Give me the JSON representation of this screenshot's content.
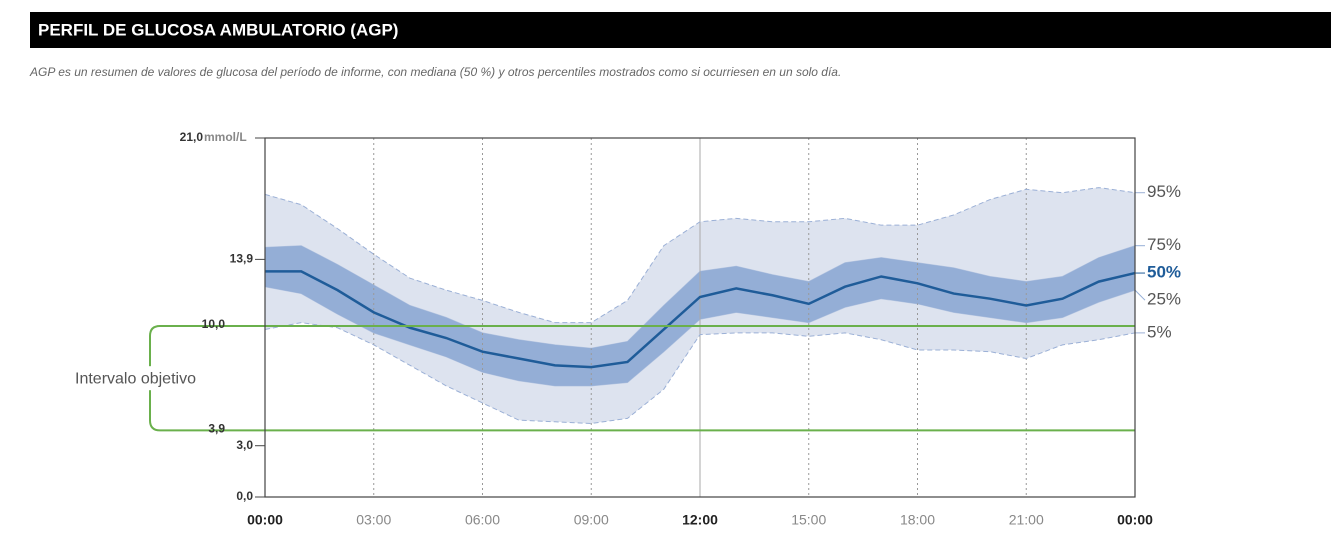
{
  "chart_data": {
    "type": "agp",
    "title": "PERFIL DE GLUCOSA AMBULATORIO (AGP)",
    "subtitle": "AGP es un resumen de valores de glucosa del período de informe, con mediana (50 %) y otros percentiles mostrados como si ocurriesen en un solo día.",
    "y_unit": "mmol/L",
    "x": [
      0,
      1,
      2,
      3,
      4,
      5,
      6,
      7,
      8,
      9,
      10,
      11,
      12,
      13,
      14,
      15,
      16,
      17,
      18,
      19,
      20,
      21,
      22,
      23,
      24
    ],
    "series": [
      {
        "name": "5%",
        "color": "#9bb0d6",
        "values": [
          9.8,
          10.2,
          9.9,
          8.9,
          7.7,
          6.5,
          5.5,
          4.5,
          4.4,
          4.3,
          4.6,
          6.3,
          9.5,
          9.6,
          9.6,
          9.4,
          9.6,
          9.2,
          8.6,
          8.6,
          8.5,
          8.1,
          8.9,
          9.2,
          9.6
        ]
      },
      {
        "name": "25%",
        "color": "#94aed6",
        "values": [
          12.3,
          11.9,
          10.7,
          9.6,
          8.9,
          8.2,
          7.3,
          6.8,
          6.5,
          6.5,
          6.7,
          8.5,
          10.4,
          10.8,
          10.5,
          10.2,
          11.1,
          11.6,
          11.3,
          10.8,
          10.5,
          10.2,
          10.5,
          11.4,
          12.1
        ]
      },
      {
        "name": "50%",
        "color": "#1f5c99",
        "values": [
          13.2,
          13.2,
          12.1,
          10.8,
          9.9,
          9.3,
          8.5,
          8.1,
          7.7,
          7.6,
          7.9,
          9.8,
          11.7,
          12.2,
          11.8,
          11.3,
          12.3,
          12.9,
          12.5,
          11.9,
          11.6,
          11.2,
          11.6,
          12.6,
          13.1
        ]
      },
      {
        "name": "75%",
        "color": "#94aed6",
        "values": [
          14.6,
          14.7,
          13.6,
          12.4,
          11.2,
          10.5,
          9.6,
          9.2,
          8.9,
          8.7,
          9.1,
          11.2,
          13.2,
          13.5,
          13.0,
          12.6,
          13.7,
          14.0,
          13.7,
          13.4,
          12.9,
          12.6,
          12.9,
          14.0,
          14.7
        ]
      },
      {
        "name": "95%",
        "color": "#9bb0d6",
        "values": [
          17.7,
          17.1,
          15.7,
          14.2,
          12.8,
          12.1,
          11.5,
          10.8,
          10.2,
          10.2,
          11.5,
          14.7,
          16.1,
          16.3,
          16.1,
          16.1,
          16.3,
          15.9,
          15.9,
          16.5,
          17.4,
          18.0,
          17.8,
          18.1,
          17.8
        ]
      }
    ],
    "band_colors": {
      "outer": "#dde3ef",
      "inner": "#94aed6"
    },
    "target_range": {
      "label": "Intervalo objetivo",
      "color": "#6ab04c",
      "low": {
        "value": 3.9,
        "label": "3,9"
      },
      "high": {
        "value": 10.0,
        "label": "10,0"
      }
    },
    "xlim": [
      0,
      24
    ],
    "xticks": [
      {
        "value": 0,
        "label": "00:00"
      },
      {
        "value": 3,
        "label": "03:00"
      },
      {
        "value": 6,
        "label": "06:00"
      },
      {
        "value": 9,
        "label": "09:00"
      },
      {
        "value": 12,
        "label": "12:00"
      },
      {
        "value": 15,
        "label": "15:00"
      },
      {
        "value": 18,
        "label": "18:00"
      },
      {
        "value": 21,
        "label": "21:00"
      },
      {
        "value": 24,
        "label": "00:00"
      }
    ],
    "ylim": [
      0,
      21
    ],
    "yticks": [
      {
        "value": 0,
        "label": "0,0"
      },
      {
        "value": 3,
        "label": "3,0"
      },
      {
        "value": 13.9,
        "label": "13,9"
      },
      {
        "value": 21,
        "label": "21,0"
      }
    ],
    "grid": true
  }
}
